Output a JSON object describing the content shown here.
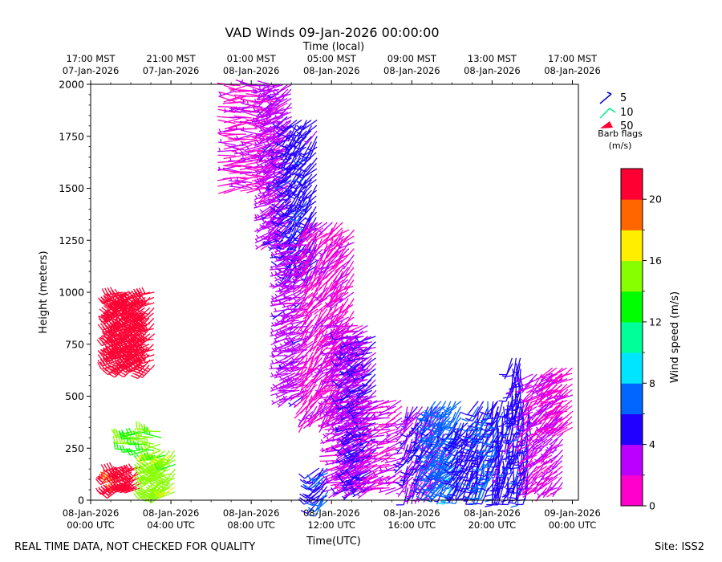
{
  "chart_data": {
    "type": "wind-barb",
    "title": "VAD Winds 09-Jan-2026 00:00:00",
    "top_axis_title": "Time (local)",
    "top_ticks": [
      {
        "h": 0,
        "line1": "17:00 MST",
        "line2": "07-Jan-2026"
      },
      {
        "h": 4,
        "line1": "21:00 MST",
        "line2": "07-Jan-2026"
      },
      {
        "h": 8,
        "line1": "01:00 MST",
        "line2": "08-Jan-2026"
      },
      {
        "h": 12,
        "line1": "05:00 MST",
        "line2": "08-Jan-2026"
      },
      {
        "h": 16,
        "line1": "09:00 MST",
        "line2": "08-Jan-2026"
      },
      {
        "h": 20,
        "line1": "13:00 MST",
        "line2": "08-Jan-2026"
      },
      {
        "h": 24,
        "line1": "17:00 MST",
        "line2": "08-Jan-2026"
      }
    ],
    "xlabel": "Time(UTC)",
    "x_ticks": [
      {
        "h": 0,
        "line1": "08-Jan-2026",
        "line2": "00:00 UTC"
      },
      {
        "h": 4,
        "line1": "08-Jan-2026",
        "line2": "04:00 UTC"
      },
      {
        "h": 8,
        "line1": "08-Jan-2026",
        "line2": "08:00 UTC"
      },
      {
        "h": 12,
        "line1": "08-Jan-2026",
        "line2": "12:00 UTC"
      },
      {
        "h": 16,
        "line1": "08-Jan-2026",
        "line2": "16:00 UTC"
      },
      {
        "h": 20,
        "line1": "08-Jan-2026",
        "line2": "20:00 UTC"
      },
      {
        "h": 24,
        "line1": "09-Jan-2026",
        "line2": "00:00 UTC"
      }
    ],
    "xlim_hours": [
      0,
      24.3
    ],
    "ylabel": "Height (meters)",
    "ylim": [
      0,
      2000
    ],
    "y_ticks": [
      0,
      250,
      500,
      750,
      1000,
      1250,
      1500,
      1750,
      2000
    ],
    "barb_legend": {
      "title_line1": "Barb flags",
      "title_line2": "(m/s)",
      "items": [
        {
          "label": "5",
          "color": "#0000cc"
        },
        {
          "label": "10",
          "color": "#00ee88"
        },
        {
          "label": "50",
          "color": "#ff0033"
        }
      ]
    },
    "colorbar": {
      "label": "Wind speed (m/s)",
      "min": 0,
      "max": 22,
      "ticks": [
        0,
        4,
        8,
        12,
        16,
        20
      ],
      "colors": [
        "#ff00cc",
        "#bb00ff",
        "#2200ff",
        "#0066ff",
        "#00e5ff",
        "#00ff99",
        "#00ff00",
        "#88ff00",
        "#ffee00",
        "#ff6600",
        "#ff0033"
      ]
    },
    "clusters": [
      {
        "t0": 1.4,
        "t1": 3.3,
        "h0": 650,
        "h1": 1000,
        "spd": 22,
        "dir": 240,
        "dt": 0.22,
        "dh": 25
      },
      {
        "t0": 1.3,
        "t1": 2.6,
        "h0": 60,
        "h1": 180,
        "spd": 21,
        "dir": 240,
        "dt": 0.25,
        "dh": 25
      },
      {
        "t0": 2.1,
        "t1": 3.6,
        "h0": 240,
        "h1": 330,
        "spd": 14,
        "dir": 270,
        "dt": 0.35,
        "dh": 30
      },
      {
        "t0": 3.2,
        "t1": 4.3,
        "h0": 40,
        "h1": 250,
        "spd": 15,
        "dir": 235,
        "dt": 0.25,
        "dh": 22
      },
      {
        "t0": 7.2,
        "t1": 9.3,
        "h0": 1500,
        "h1": 2000,
        "spd": 1.5,
        "dir": 270,
        "dt": 0.28,
        "dh": 26
      },
      {
        "t0": 9.0,
        "t1": 10.0,
        "h0": 1250,
        "h1": 2000,
        "spd": 3,
        "dir": 240,
        "dt": 0.2,
        "dh": 22
      },
      {
        "t0": 10.0,
        "t1": 11.3,
        "h0": 1100,
        "h1": 1850,
        "spd": 5,
        "dir": 220,
        "dt": 0.25,
        "dh": 26
      },
      {
        "t0": 9.8,
        "t1": 10.9,
        "h0": 500,
        "h1": 1250,
        "spd": 3,
        "dir": 250,
        "dt": 0.2,
        "dh": 28
      },
      {
        "t0": 10.8,
        "t1": 12.6,
        "h0": 400,
        "h1": 1350,
        "spd": 1.5,
        "dir": 220,
        "dt": 0.25,
        "dh": 26
      },
      {
        "t0": 12.3,
        "t1": 13.8,
        "h0": 60,
        "h1": 850,
        "spd": 2.5,
        "dir": 250,
        "dt": 0.25,
        "dh": 26
      },
      {
        "t0": 12.6,
        "t1": 13.3,
        "h0": 700,
        "h1": 1300,
        "spd": 1.5,
        "dir": 230,
        "dt": 0.25,
        "dh": 30
      },
      {
        "t0": 13.0,
        "t1": 14.3,
        "h0": 60,
        "h1": 800,
        "spd": 4,
        "dir": 240,
        "dt": 0.2,
        "dh": 26
      },
      {
        "t0": 14.0,
        "t1": 15.5,
        "h0": 60,
        "h1": 480,
        "spd": 2,
        "dir": 250,
        "dt": 0.3,
        "dh": 28
      },
      {
        "t0": 11.4,
        "t1": 11.8,
        "h0": 0,
        "h1": 170,
        "spd": 6,
        "dir": 225,
        "dt": 0.2,
        "dh": 22
      },
      {
        "t0": 15.8,
        "t1": 17.6,
        "h0": 60,
        "h1": 450,
        "spd": 4,
        "dir": 210,
        "dt": 0.25,
        "dh": 26
      },
      {
        "t0": 17.2,
        "t1": 18.6,
        "h0": 60,
        "h1": 500,
        "spd": 7,
        "dir": 220,
        "dt": 0.25,
        "dh": 26
      },
      {
        "t0": 18.3,
        "t1": 19.3,
        "h0": 60,
        "h1": 380,
        "spd": 5,
        "dir": 210,
        "dt": 0.25,
        "dh": 26
      },
      {
        "t0": 19.3,
        "t1": 20.3,
        "h0": 60,
        "h1": 480,
        "spd": 6,
        "dir": 200,
        "dt": 0.25,
        "dh": 26
      },
      {
        "t0": 20.3,
        "t1": 22.0,
        "h0": 60,
        "h1": 500,
        "spd": 5,
        "dir": 190,
        "dt": 0.25,
        "dh": 26
      },
      {
        "t0": 21.0,
        "t1": 21.5,
        "h0": 450,
        "h1": 700,
        "spd": 5,
        "dir": 190,
        "dt": 0.2,
        "dh": 26
      },
      {
        "t0": 22.0,
        "t1": 23.5,
        "h0": 60,
        "h1": 620,
        "spd": 2,
        "dir": 230,
        "dt": 0.25,
        "dh": 26
      },
      {
        "t0": 23.0,
        "t1": 24.0,
        "h0": 350,
        "h1": 640,
        "spd": 1.5,
        "dir": 240,
        "dt": 0.25,
        "dh": 26
      }
    ]
  },
  "footer": {
    "disclaimer": "REAL TIME DATA, NOT CHECKED FOR QUALITY",
    "site": "Site: ISS2"
  }
}
